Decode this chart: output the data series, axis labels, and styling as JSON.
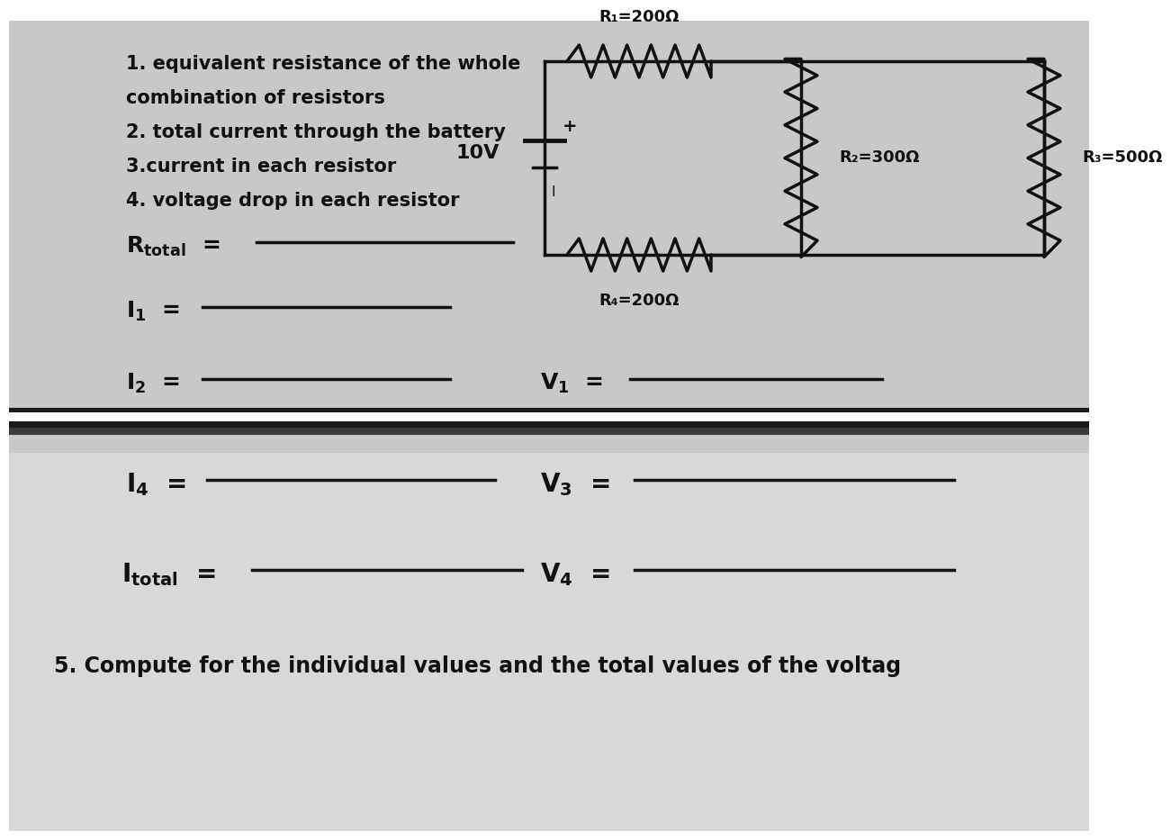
{
  "bg_top": "#c8c8c8",
  "bg_bottom": "#d8d8d8",
  "bg_separator_dark": "#222222",
  "bg_separator_light": "#ffffff",
  "text_color": "#111111",
  "line_color": "#111111",
  "instructions": [
    "1. equivalent resistance of the whole",
    "combination of resistors",
    "2. total current through the battery",
    "3.current in each resistor",
    "4. voltage drop in each resistor"
  ],
  "voltage": "10V",
  "R1": "R₁=200Ω",
  "R2": "R₂=300Ω",
  "R3": "R₃=500Ω",
  "R4": "R₄=200Ω",
  "bottom_text": "5. Compute for the individual values and the total values of the voltag"
}
